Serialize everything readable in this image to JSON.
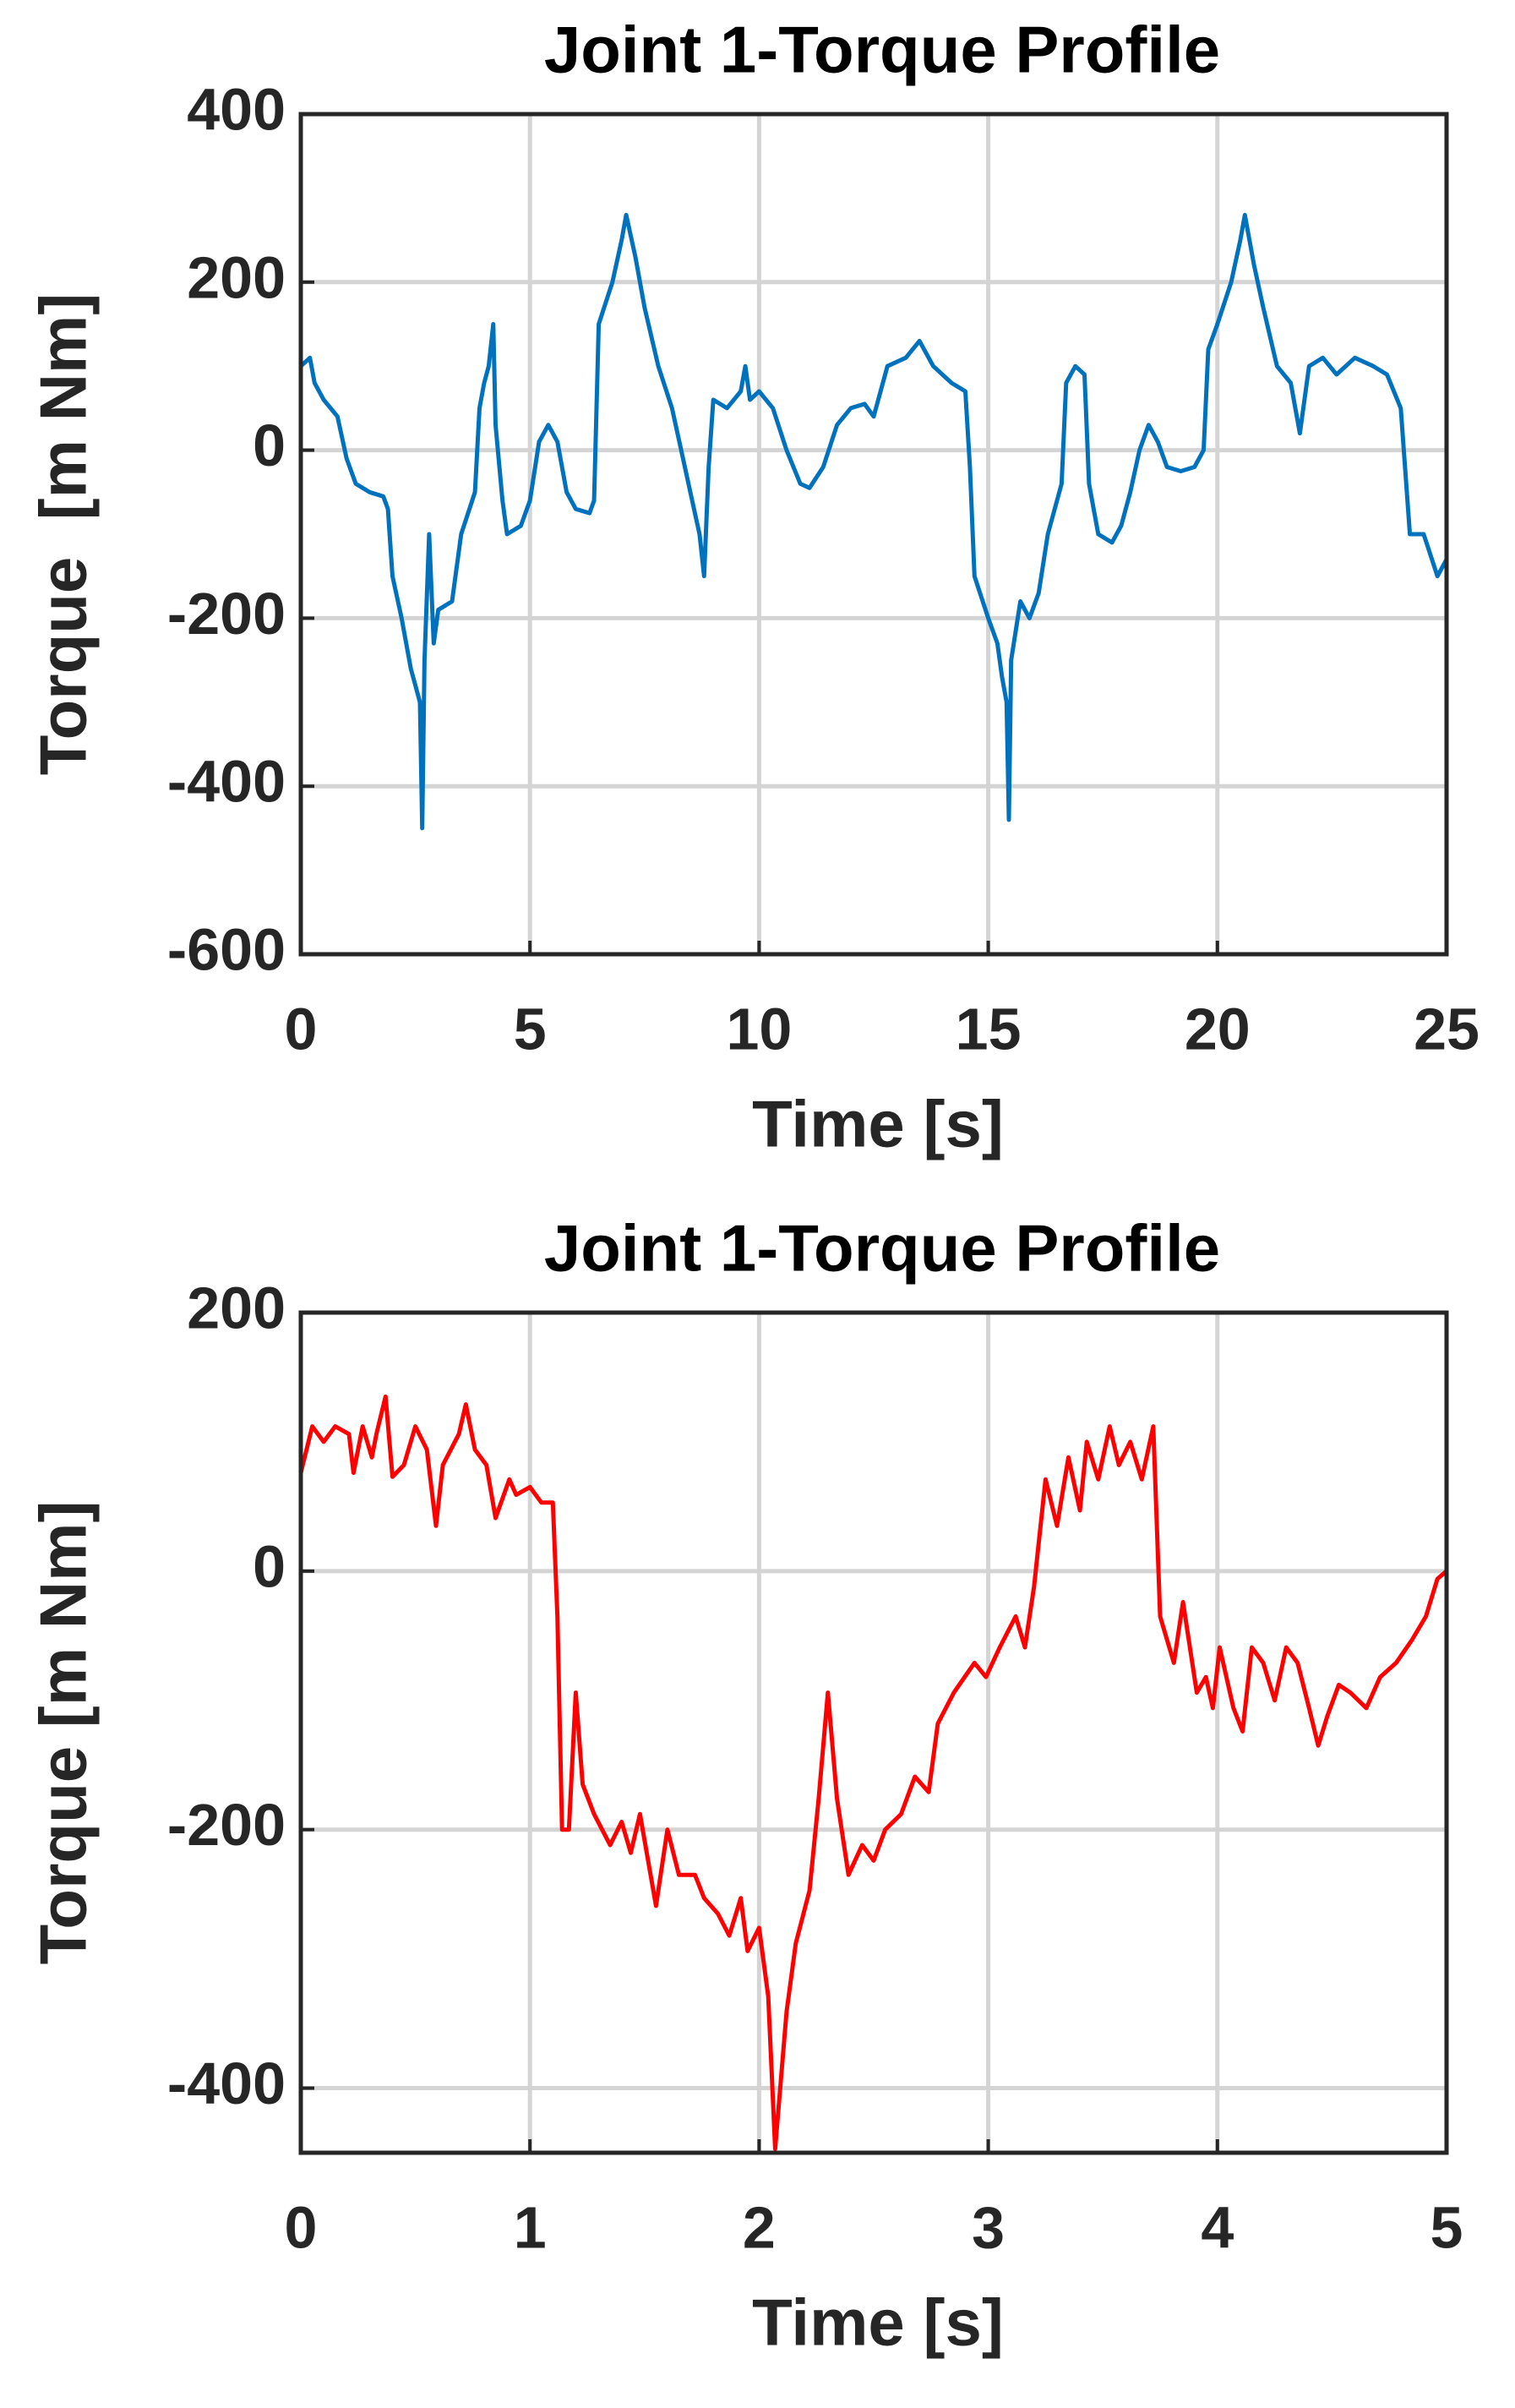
{
  "chart_data": [
    {
      "type": "line",
      "title": "Joint 1-Torque Profile",
      "xlabel": "Time [s]",
      "ylabel": "Torque  [m Nm]",
      "x": [
        0,
        0.2,
        0.3,
        0.5,
        0.8,
        1.0,
        1.2,
        1.5,
        1.8,
        1.9,
        2.0,
        2.2,
        2.4,
        2.5,
        2.6,
        2.65,
        2.7,
        2.8,
        2.9,
        3.0,
        3.3,
        3.5,
        3.8,
        3.9,
        4.0,
        4.1,
        4.2,
        4.25,
        4.4,
        4.5,
        4.8,
        5.0,
        5.2,
        5.4,
        5.6,
        5.8,
        6.0,
        6.3,
        6.4,
        6.5,
        6.8,
        7.0,
        7.1,
        7.3,
        7.5,
        7.8,
        8.1,
        8.3,
        8.5,
        8.7,
        8.8,
        8.9,
        9.0,
        9.3,
        9.6,
        9.7,
        9.8,
        10.0,
        10.3,
        10.6,
        10.9,
        11.1,
        11.4,
        11.7,
        12.0,
        12.3,
        12.5,
        12.8,
        13.2,
        13.5,
        13.8,
        14.2,
        14.5,
        14.6,
        14.7,
        15.0,
        15.2,
        15.3,
        15.4,
        15.45,
        15.5,
        15.7,
        15.9,
        16.1,
        16.3,
        16.6,
        16.7,
        16.9,
        17.1,
        17.2,
        17.4,
        17.7,
        17.9,
        18.1,
        18.3,
        18.5,
        18.7,
        18.9,
        19.2,
        19.5,
        19.7,
        19.8,
        20.0,
        20.3,
        20.5,
        20.6,
        20.8,
        21.0,
        21.3,
        21.6,
        21.8,
        22.0,
        22.3,
        22.6,
        23.0,
        23.4,
        23.7,
        24.0,
        24.2,
        24.5,
        24.8,
        25.0
      ],
      "values": [
        100,
        110,
        80,
        60,
        40,
        -10,
        -40,
        -50,
        -55,
        -70,
        -150,
        -200,
        -260,
        -280,
        -300,
        -450,
        -250,
        -100,
        -230,
        -190,
        -180,
        -100,
        -50,
        50,
        80,
        100,
        150,
        30,
        -60,
        -100,
        -90,
        -60,
        10,
        30,
        10,
        -50,
        -70,
        -75,
        -60,
        150,
        200,
        250,
        280,
        230,
        170,
        100,
        50,
        0,
        -50,
        -100,
        -150,
        -20,
        60,
        50,
        70,
        100,
        60,
        70,
        50,
        0,
        -40,
        -45,
        -20,
        30,
        50,
        55,
        40,
        100,
        110,
        130,
        100,
        80,
        70,
        -20,
        -150,
        -200,
        -230,
        -270,
        -300,
        -440,
        -250,
        -180,
        -200,
        -170,
        -100,
        -40,
        80,
        100,
        90,
        -40,
        -100,
        -110,
        -90,
        -50,
        0,
        30,
        10,
        -20,
        -25,
        -20,
        0,
        120,
        150,
        200,
        250,
        280,
        220,
        170,
        100,
        80,
        20,
        100,
        110,
        90,
        110,
        100,
        90,
        50,
        -100,
        -100,
        -150,
        -130
      ],
      "color": "#0072bd",
      "xlim": [
        0,
        25
      ],
      "xticks": [
        0,
        5,
        10,
        15,
        20,
        25
      ],
      "ylim": [
        -600,
        400
      ],
      "yticks": [
        -600,
        -400,
        -200,
        0,
        200,
        400
      ],
      "grid": true
    },
    {
      "type": "line",
      "title": "Joint 1-Torque Profile",
      "xlabel": "Time [s]",
      "ylabel": "Torque [m Nm]",
      "x": [
        0,
        0.05,
        0.1,
        0.15,
        0.21,
        0.23,
        0.27,
        0.31,
        0.33,
        0.37,
        0.4,
        0.45,
        0.5,
        0.55,
        0.59,
        0.62,
        0.69,
        0.72,
        0.76,
        0.81,
        0.85,
        0.91,
        0.94,
        1.0,
        1.05,
        1.1,
        1.12,
        1.14,
        1.17,
        1.2,
        1.23,
        1.28,
        1.35,
        1.4,
        1.44,
        1.48,
        1.55,
        1.6,
        1.65,
        1.72,
        1.76,
        1.82,
        1.87,
        1.92,
        1.95,
        2.0,
        2.04,
        2.07,
        2.12,
        2.16,
        2.22,
        2.26,
        2.3,
        2.34,
        2.39,
        2.45,
        2.5,
        2.55,
        2.62,
        2.68,
        2.74,
        2.78,
        2.85,
        2.94,
        2.99,
        3.05,
        3.12,
        3.16,
        3.2,
        3.25,
        3.3,
        3.35,
        3.4,
        3.43,
        3.48,
        3.53,
        3.57,
        3.62,
        3.67,
        3.72,
        3.75,
        3.81,
        3.85,
        3.91,
        3.95,
        3.98,
        4.01,
        4.07,
        4.11,
        4.15,
        4.2,
        4.25,
        4.3,
        4.35,
        4.4,
        4.44,
        4.48,
        4.53,
        4.58,
        4.65,
        4.71,
        4.78,
        4.85,
        4.91,
        4.96,
        5.0
      ],
      "values": [
        76,
        112,
        100,
        112,
        106,
        76,
        112,
        88,
        106,
        135,
        73,
        82,
        112,
        94,
        35,
        82,
        106,
        129,
        94,
        82,
        41,
        71,
        59,
        65,
        53,
        53,
        -35,
        -200,
        -200,
        -94,
        -165,
        -188,
        -212,
        -194,
        -218,
        -188,
        -259,
        -200,
        -235,
        -235,
        -253,
        -265,
        -282,
        -253,
        -294,
        -276,
        -329,
        -447,
        -341,
        -288,
        -247,
        -176,
        -94,
        -176,
        -235,
        -212,
        -224,
        -200,
        -188,
        -159,
        -171,
        -118,
        -94,
        -71,
        -82,
        -59,
        -35,
        -59,
        -12,
        71,
        35,
        88,
        47,
        100,
        71,
        112,
        82,
        100,
        71,
        112,
        -35,
        -71,
        -24,
        -94,
        -82,
        -106,
        -59,
        -106,
        -124,
        -59,
        -71,
        -100,
        -59,
        -71,
        -106,
        -135,
        -112,
        -88,
        -94,
        -106,
        -82,
        -71,
        -53,
        -35,
        -6,
        0
      ],
      "color": "#ff0000",
      "xlim": [
        0,
        5
      ],
      "xticks": [
        0,
        1,
        2,
        3,
        4,
        5
      ],
      "ylim": [
        -450,
        200
      ],
      "yticks": [
        -400,
        -200,
        0,
        200
      ],
      "grid": true
    }
  ]
}
